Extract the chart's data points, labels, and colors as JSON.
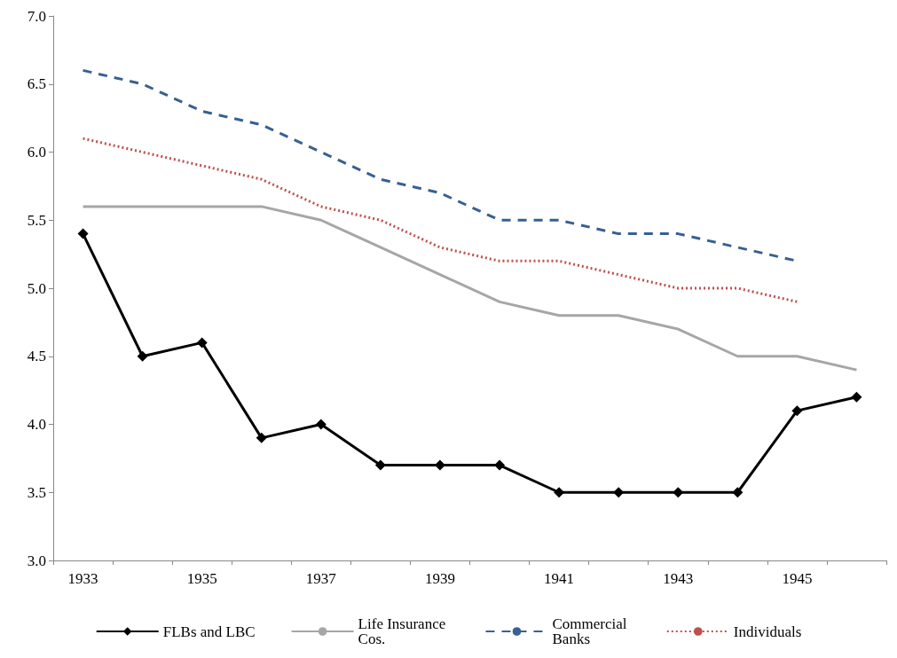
{
  "chart_data": {
    "type": "line",
    "categories": [
      "1933",
      null,
      "1935",
      null,
      "1937",
      null,
      "1939",
      null,
      "1941",
      null,
      "1943",
      null,
      "1945",
      null
    ],
    "ylim": [
      3,
      7
    ],
    "yticks": [
      {
        "value": 3,
        "label": "3.0"
      },
      {
        "value": 3.5,
        "label": "3.5"
      },
      {
        "value": 4,
        "label": "4.0"
      },
      {
        "value": 4.5,
        "label": "4.5"
      },
      {
        "value": 5,
        "label": "5.0"
      },
      {
        "value": 5.5,
        "label": "5.5"
      },
      {
        "value": 6,
        "label": "6.0"
      },
      {
        "value": 6.5,
        "label": "6.5"
      },
      {
        "value": 7,
        "label": "7.0"
      }
    ],
    "grid": false,
    "legend": "bottom",
    "series": [
      {
        "name": "FLBs and LBC",
        "color": "#000000",
        "marker": "diamond",
        "line_style": "solid",
        "values": [
          5.4,
          4.5,
          4.6,
          3.9,
          4.0,
          3.7,
          3.7,
          3.7,
          3.5,
          3.5,
          3.5,
          3.5,
          4.1,
          4.2
        ]
      },
      {
        "name": "Life Insurance Cos.",
        "color": "#a6a6a6",
        "marker": "none",
        "line_style": "solid",
        "values": [
          5.6,
          5.6,
          5.6,
          5.6,
          5.5,
          5.3,
          5.1,
          4.9,
          4.8,
          4.8,
          4.7,
          4.5,
          4.5,
          4.4
        ]
      },
      {
        "name": "Commercial Banks",
        "color": "#376092",
        "marker": "none",
        "line_style": "dashed",
        "values": [
          6.6,
          6.5,
          6.3,
          6.2,
          6.0,
          5.8,
          5.7,
          5.5,
          5.5,
          5.4,
          5.4,
          5.3,
          5.2,
          null
        ]
      },
      {
        "name": "Individuals",
        "color": "#c0504d",
        "marker": "none",
        "line_style": "dotted",
        "values": [
          6.1,
          6.0,
          5.9,
          5.8,
          5.6,
          5.5,
          5.3,
          5.2,
          5.2,
          5.1,
          5.0,
          5.0,
          4.9,
          null
        ]
      }
    ]
  }
}
